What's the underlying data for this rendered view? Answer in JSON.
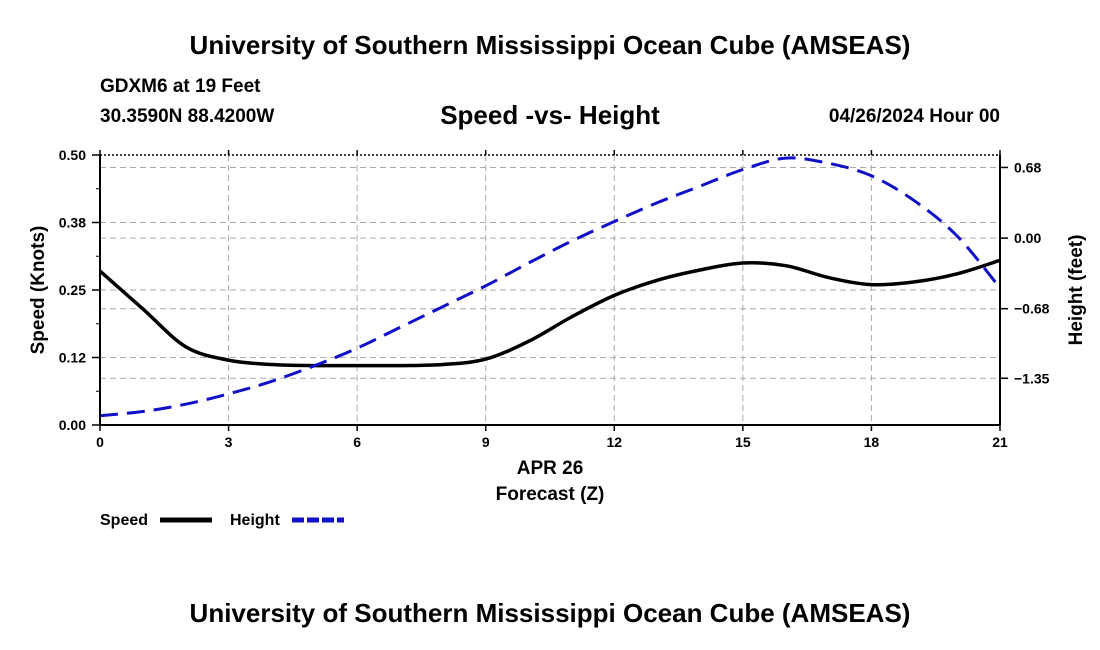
{
  "header": {
    "title": "University of Southern Mississippi Ocean Cube (AMSEAS)",
    "station": "GDXM6 at 19 Feet",
    "coords": "30.3590N  88.4200W",
    "subtitle": "Speed -vs- Height",
    "datetime": "04/26/2024 Hour 00"
  },
  "footer": {
    "title": "University of Southern Mississippi Ocean Cube (AMSEAS)"
  },
  "chart_data": {
    "type": "line",
    "title": "Speed -vs- Height",
    "xlabel": "Forecast (Z)",
    "date_label": "APR 26",
    "ylabel": "Speed (Knots)",
    "y2label": "Height (feet)",
    "xlim": [
      0,
      21
    ],
    "ylim": [
      0,
      0.5
    ],
    "y2lim": [
      -1.8,
      0.8
    ],
    "xticks": [
      "0",
      "3",
      "6",
      "9",
      "12",
      "15",
      "18",
      "21"
    ],
    "xtick_values": [
      0,
      3,
      6,
      9,
      12,
      15,
      18,
      21
    ],
    "yticks": [
      "0.00",
      "0.12",
      "0.25",
      "0.38",
      "0.50"
    ],
    "ytick_values": [
      0,
      0.125,
      0.25,
      0.375,
      0.5
    ],
    "y2ticks": [
      "0.68",
      "0.00",
      "−0.68",
      "−1.35"
    ],
    "y2tick_values": [
      0.68,
      0,
      -0.68,
      -1.35
    ],
    "grid": true,
    "colors": {
      "speed": "#000000",
      "height": "#1010c8",
      "grid": "#aaaaaa"
    },
    "series": [
      {
        "name": "Speed",
        "axis": "left",
        "style": "solid",
        "x": [
          0,
          1,
          2,
          3,
          4,
          5,
          6,
          7,
          8,
          9,
          10,
          11,
          12,
          13,
          14,
          15,
          16,
          17,
          18,
          19,
          20,
          21
        ],
        "values": [
          0.285,
          0.215,
          0.145,
          0.12,
          0.112,
          0.11,
          0.11,
          0.11,
          0.112,
          0.122,
          0.155,
          0.2,
          0.24,
          0.268,
          0.287,
          0.3,
          0.295,
          0.273,
          0.26,
          0.265,
          0.28,
          0.305
        ]
      },
      {
        "name": "Height",
        "axis": "right",
        "style": "dashed",
        "x": [
          0,
          1,
          2,
          3,
          4,
          5,
          6,
          7,
          8,
          9,
          10,
          11,
          12,
          13,
          14,
          15,
          16,
          17,
          18,
          19,
          20,
          21
        ],
        "values": [
          -1.71,
          -1.67,
          -1.6,
          -1.5,
          -1.38,
          -1.23,
          -1.06,
          -0.86,
          -0.66,
          -0.46,
          -0.24,
          -0.03,
          0.16,
          0.34,
          0.5,
          0.66,
          0.77,
          0.72,
          0.6,
          0.36,
          0.02,
          -0.48
        ]
      }
    ],
    "legend": [
      {
        "label": "Speed",
        "style": "solid"
      },
      {
        "label": "Height",
        "style": "dashed"
      }
    ],
    "legend_position": "bottom-left"
  }
}
